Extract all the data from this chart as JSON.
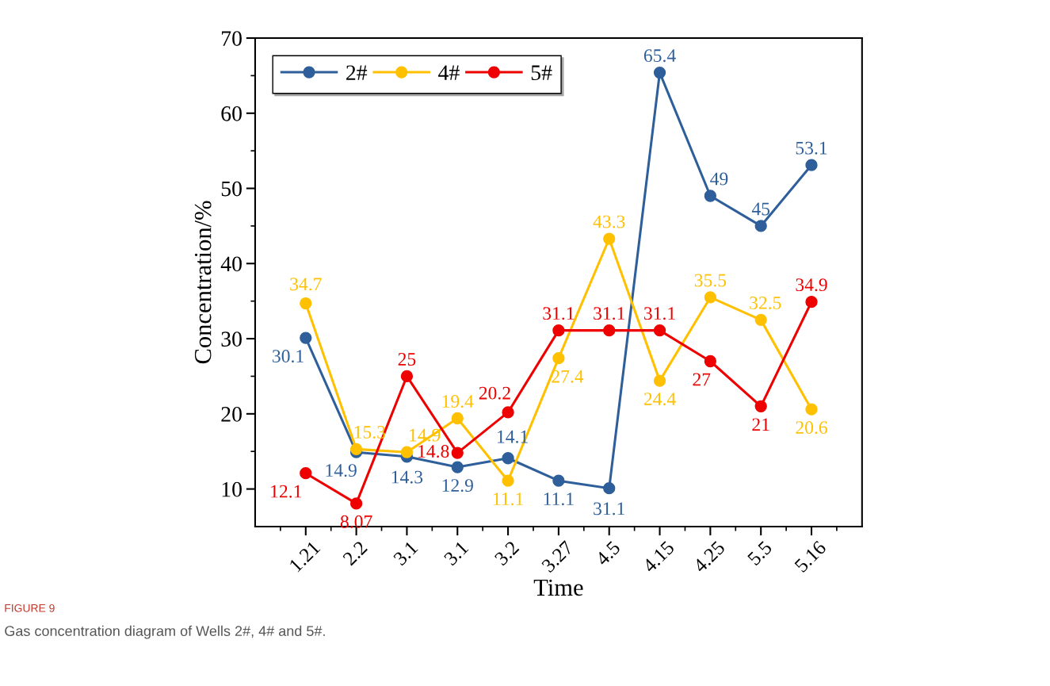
{
  "chart_data": {
    "type": "line",
    "xlabel": "Time",
    "ylabel": "Concentration/%",
    "categories": [
      "1.21",
      "2.2",
      "3.1",
      "3.1",
      "3.2",
      "3.27",
      "4.5",
      "4.15",
      "4.25",
      "5.5",
      "5.16"
    ],
    "series": [
      {
        "name": "2#",
        "color": "#2e5f9a",
        "values": [
          30.1,
          14.9,
          14.3,
          12.9,
          14.1,
          11.1,
          10.1,
          65.4,
          49,
          45,
          53.1
        ],
        "value_labels": [
          "30.1",
          "14.9",
          "14.3",
          "12.9",
          "14.1",
          "11.1",
          null,
          "65.4",
          "49",
          "45",
          "53.1"
        ]
      },
      {
        "name": "4#",
        "color": "#ffc000",
        "values": [
          34.7,
          15.3,
          14.9,
          19.4,
          11.1,
          27.4,
          43.3,
          24.4,
          35.5,
          32.5,
          20.6
        ],
        "value_labels": [
          "34.7",
          "15.3",
          "14.9",
          "19.4",
          "11.1",
          "27.4",
          "43.3",
          "24.4",
          "35.5",
          "32.5",
          "20.6"
        ]
      },
      {
        "name": "5#",
        "color": "#ee0000",
        "values": [
          12.1,
          8.07,
          25,
          14.8,
          20.2,
          31.1,
          31.1,
          31.1,
          27,
          21,
          34.9
        ],
        "value_labels": [
          "12.1",
          "8.07",
          "25",
          "14.8",
          "20.2",
          "31.1",
          "31.1",
          "31.1",
          "27",
          "21",
          "34.9"
        ]
      }
    ],
    "ylim": [
      5,
      70
    ],
    "yticks": [
      10,
      20,
      30,
      40,
      50,
      60,
      70
    ],
    "marker": "circle",
    "line_style": "solid",
    "grid": false,
    "legend": "top left",
    "annotations": [
      {
        "text": "31.1",
        "x": "4.5",
        "y": 10.1
      },
      "FIGURE 9",
      "Gas concentration diagram of Wells 2#, 4# and 5#."
    ]
  }
}
